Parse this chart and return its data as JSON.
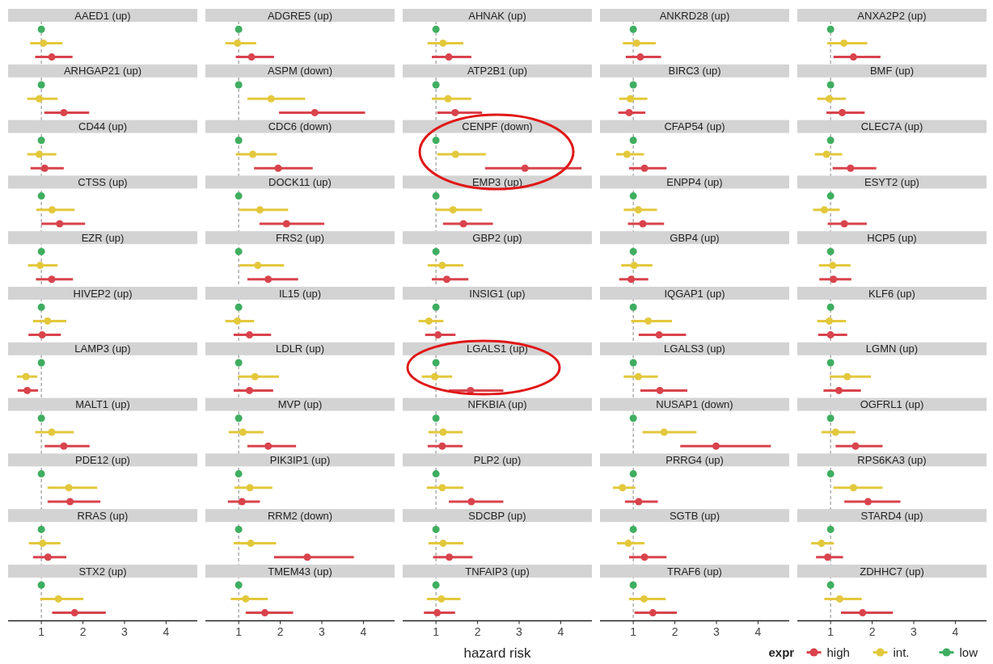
{
  "chart_data": [
    {
      "type": "scatter",
      "orientation": "horizontal",
      "categories": [
        "AAED1 (up)",
        null,
        null,
        null,
        "ARHGAP21 (up)",
        null,
        null,
        null,
        "CD44 (up)",
        null,
        null,
        null,
        "CTSS (up)",
        null,
        null,
        null,
        "EZR (up)",
        null,
        null,
        null,
        "HIVEP2 (up)",
        null,
        null,
        null,
        "LAMP3 (up)",
        null,
        null,
        null,
        "MALT1 (up)",
        null,
        null,
        null,
        "PDE12 (up)",
        null,
        null,
        null,
        "RRAS (up)",
        null,
        null,
        null,
        "STX2 (up)",
        null,
        null,
        null
      ],
      "xlim": [
        0.2,
        4.75
      ],
      "xticks": [
        1,
        2,
        3,
        4
      ],
      "marker": "circle",
      "ref_lines": [
        {
          "axis": "x",
          "value": 1,
          "line_style": "dashed",
          "color": "#9a9a9a"
        }
      ],
      "series": [
        {
          "color": "#d9434c",
          "values": [
            null,
            null,
            null,
            1.25,
            null,
            null,
            null,
            1.54,
            null,
            null,
            null,
            1.08,
            null,
            null,
            null,
            1.44,
            null,
            null,
            null,
            1.25,
            null,
            null,
            null,
            1.02,
            null,
            null,
            null,
            0.66,
            null,
            null,
            null,
            1.54,
            null,
            null,
            null,
            1.69,
            null,
            null,
            null,
            1.16,
            null,
            null,
            null,
            1.8
          ],
          "errors": [
            null,
            null,
            null,
            [
              0.85,
              1.75
            ],
            null,
            null,
            null,
            [
              1.07,
              2.15
            ],
            null,
            null,
            null,
            [
              0.74,
              1.54
            ],
            null,
            null,
            null,
            [
              1.0,
              2.05
            ],
            null,
            null,
            null,
            [
              0.87,
              1.76
            ],
            null,
            null,
            null,
            [
              0.69,
              1.47
            ],
            null,
            null,
            null,
            [
              0.43,
              0.92
            ],
            null,
            null,
            null,
            [
              1.08,
              2.16
            ],
            null,
            null,
            null,
            [
              1.15,
              2.42
            ],
            null,
            null,
            null,
            [
              0.8,
              1.6
            ],
            null,
            null,
            null,
            [
              1.26,
              2.55
            ]
          ]
        },
        {
          "color": "#e3c83c",
          "values": [
            null,
            null,
            1.05,
            null,
            null,
            null,
            0.95,
            null,
            null,
            null,
            0.95,
            null,
            null,
            null,
            1.26,
            null,
            null,
            null,
            0.97,
            null,
            null,
            null,
            1.15,
            null,
            null,
            null,
            0.63,
            null,
            null,
            null,
            1.25,
            null,
            null,
            null,
            1.66,
            null,
            null,
            null,
            1.03,
            null,
            null,
            null,
            1.41,
            null
          ],
          "errors": [
            null,
            null,
            [
              0.73,
              1.51
            ],
            null,
            null,
            null,
            [
              0.66,
              1.39
            ],
            null,
            null,
            null,
            [
              0.66,
              1.36
            ],
            null,
            null,
            null,
            [
              0.88,
              1.8
            ],
            null,
            null,
            null,
            [
              0.68,
              1.39
            ],
            null,
            null,
            null,
            [
              0.8,
              1.6
            ],
            null,
            null,
            null,
            [
              0.41,
              0.9
            ],
            null,
            null,
            null,
            [
              0.85,
              1.78
            ],
            null,
            null,
            null,
            [
              1.15,
              2.34
            ],
            null,
            null,
            null,
            [
              0.7,
              1.46
            ],
            null,
            null,
            null,
            [
              0.97,
              2.01
            ],
            null
          ]
        },
        {
          "color": "#3fae60",
          "values": [
            null,
            1,
            null,
            null,
            null,
            1,
            null,
            null,
            null,
            1,
            null,
            null,
            null,
            1,
            null,
            null,
            null,
            1,
            null,
            null,
            null,
            1,
            null,
            null,
            null,
            1,
            null,
            null,
            null,
            1,
            null,
            null,
            null,
            1,
            null,
            null,
            null,
            1,
            null,
            null,
            null,
            1,
            null,
            null
          ]
        }
      ]
    },
    {
      "type": "scatter",
      "orientation": "horizontal",
      "categories": [
        "ADGRE5 (up)",
        null,
        null,
        null,
        "ASPM (down)",
        null,
        null,
        null,
        "CDC6 (down)",
        null,
        null,
        null,
        "DOCK11 (up)",
        null,
        null,
        null,
        "FRS2 (up)",
        null,
        null,
        null,
        "IL15 (up)",
        null,
        null,
        null,
        "LDLR (up)",
        null,
        null,
        null,
        "MVP (up)",
        null,
        null,
        null,
        "PIK3IP1 (up)",
        null,
        null,
        null,
        "RRM2 (down)",
        null,
        null,
        null,
        "TMEM43 (up)",
        null,
        null,
        null
      ],
      "xlim": [
        0.2,
        4.75
      ],
      "xticks": [
        1,
        2,
        3,
        4
      ],
      "marker": "circle",
      "ref_lines": [
        {
          "axis": "x",
          "value": 1,
          "line_style": "dashed",
          "color": "#9a9a9a"
        }
      ],
      "series": [
        {
          "color": "#d9434c",
          "values": [
            null,
            null,
            null,
            1.31,
            null,
            null,
            null,
            2.83,
            null,
            null,
            null,
            1.95,
            null,
            null,
            null,
            2.15,
            null,
            null,
            null,
            1.71,
            null,
            null,
            null,
            1.26,
            null,
            null,
            null,
            1.26,
            null,
            null,
            null,
            1.71,
            null,
            null,
            null,
            1.08,
            null,
            null,
            null,
            2.65,
            null,
            null,
            null,
            1.63
          ],
          "errors": [
            null,
            null,
            null,
            [
              0.93,
              1.85
            ],
            null,
            null,
            null,
            [
              1.97,
              4.04
            ],
            null,
            null,
            null,
            [
              1.37,
              2.78
            ],
            null,
            null,
            null,
            [
              1.5,
              3.06
            ],
            null,
            null,
            null,
            [
              1.21,
              2.43
            ],
            null,
            null,
            null,
            [
              0.88,
              1.78
            ],
            null,
            null,
            null,
            [
              0.88,
              1.83
            ],
            null,
            null,
            null,
            [
              1.21,
              2.38
            ],
            null,
            null,
            null,
            [
              0.74,
              1.51
            ],
            null,
            null,
            null,
            [
              1.85,
              3.77
            ],
            null,
            null,
            null,
            [
              1.17,
              2.31
            ]
          ]
        },
        {
          "color": "#e3c83c",
          "values": [
            null,
            null,
            0.97,
            null,
            null,
            null,
            1.78,
            null,
            null,
            null,
            1.34,
            null,
            null,
            null,
            1.51,
            null,
            null,
            null,
            1.46,
            null,
            null,
            null,
            0.97,
            null,
            null,
            null,
            1.39,
            null,
            null,
            null,
            1.1,
            null,
            null,
            null,
            1.27,
            null,
            null,
            null,
            1.29,
            null,
            null,
            null,
            1.17,
            null
          ],
          "errors": [
            null,
            null,
            [
              0.68,
              1.42
            ],
            null,
            null,
            null,
            [
              1.21,
              2.6
            ],
            null,
            null,
            null,
            [
              0.93,
              1.92
            ],
            null,
            null,
            null,
            [
              1.02,
              2.19
            ],
            null,
            null,
            null,
            [
              1.02,
              2.09
            ],
            null,
            null,
            null,
            [
              0.68,
              1.37
            ],
            null,
            null,
            null,
            [
              0.98,
              1.97
            ],
            null,
            null,
            null,
            [
              0.76,
              1.6
            ],
            null,
            null,
            null,
            [
              0.9,
              1.81
            ],
            null,
            null,
            null,
            [
              0.88,
              1.9
            ],
            null,
            null,
            null,
            [
              0.81,
              1.7
            ],
            null
          ]
        },
        {
          "color": "#3fae60",
          "values": [
            null,
            1,
            null,
            null,
            null,
            1,
            null,
            null,
            null,
            1,
            null,
            null,
            null,
            1,
            null,
            null,
            null,
            1,
            null,
            null,
            null,
            1,
            null,
            null,
            null,
            1,
            null,
            null,
            null,
            1,
            null,
            null,
            null,
            1,
            null,
            null,
            null,
            1,
            null,
            null,
            null,
            1,
            null,
            null
          ]
        }
      ]
    },
    {
      "type": "scatter",
      "orientation": "horizontal",
      "xlabel": "hazard risk",
      "categories": [
        "AHNAK (up)",
        null,
        null,
        null,
        "ATP2B1 (up)",
        null,
        null,
        null,
        "CENPF (down)",
        null,
        null,
        null,
        "EMP3 (up)",
        null,
        null,
        null,
        "GBP2 (up)",
        null,
        null,
        null,
        "INSIG1 (up)",
        null,
        null,
        null,
        "LGALS1 (up)",
        null,
        null,
        null,
        "NFKBIA (up)",
        null,
        null,
        null,
        "PLP2 (up)",
        null,
        null,
        null,
        "SDCBP (up)",
        null,
        null,
        null,
        "TNFAIP3 (up)",
        null,
        null,
        null
      ],
      "xlim": [
        0.2,
        4.75
      ],
      "xticks": [
        1,
        2,
        3,
        4
      ],
      "marker": "circle",
      "ref_lines": [
        {
          "axis": "x",
          "value": 1,
          "line_style": "dashed",
          "color": "#9a9a9a"
        }
      ],
      "series": [
        {
          "color": "#d9434c",
          "values": [
            null,
            null,
            null,
            1.31,
            null,
            null,
            null,
            1.46,
            null,
            null,
            null,
            3.14,
            null,
            null,
            null,
            1.66,
            null,
            null,
            null,
            1.26,
            null,
            null,
            null,
            1.05,
            null,
            null,
            null,
            1.83,
            null,
            null,
            null,
            1.15,
            null,
            null,
            null,
            1.85,
            null,
            null,
            null,
            1.32,
            null,
            null,
            null,
            1.03
          ],
          "errors": [
            null,
            null,
            null,
            [
              0.9,
              1.85
            ],
            null,
            null,
            null,
            [
              1.03,
              2.11
            ],
            null,
            null,
            null,
            [
              2.18,
              4.5
            ],
            null,
            null,
            null,
            [
              1.17,
              2.37
            ],
            null,
            null,
            null,
            [
              0.9,
              1.78
            ],
            null,
            null,
            null,
            [
              0.74,
              1.47
            ],
            null,
            null,
            null,
            [
              1.31,
              2.62
            ],
            null,
            null,
            null,
            [
              0.8,
              1.64
            ],
            null,
            null,
            null,
            [
              1.31,
              2.62
            ],
            null,
            null,
            null,
            [
              0.93,
              1.88
            ],
            null,
            null,
            null,
            [
              0.71,
              1.46
            ]
          ]
        },
        {
          "color": "#e3c83c",
          "values": [
            null,
            null,
            1.17,
            null,
            null,
            null,
            1.29,
            null,
            null,
            null,
            1.47,
            null,
            null,
            null,
            1.41,
            null,
            null,
            null,
            1.15,
            null,
            null,
            null,
            0.83,
            null,
            null,
            null,
            0.97,
            null,
            null,
            null,
            1.17,
            null,
            null,
            null,
            1.15,
            null,
            null,
            null,
            1.17,
            null,
            null,
            null,
            1.13,
            null
          ],
          "errors": [
            null,
            null,
            [
              0.8,
              1.66
            ],
            null,
            null,
            null,
            [
              0.9,
              1.85
            ],
            null,
            null,
            null,
            [
              1.03,
              2.2
            ],
            null,
            null,
            null,
            [
              1.0,
              2.11
            ],
            null,
            null,
            null,
            [
              0.8,
              1.66
            ],
            null,
            null,
            null,
            [
              0.58,
              1.18
            ],
            null,
            null,
            null,
            [
              0.66,
              1.39
            ],
            null,
            null,
            null,
            [
              0.82,
              1.64
            ],
            null,
            null,
            null,
            [
              0.78,
              1.66
            ],
            null,
            null,
            null,
            [
              0.82,
              1.66
            ],
            null,
            null,
            null,
            [
              0.78,
              1.59
            ],
            null
          ]
        },
        {
          "color": "#3fae60",
          "values": [
            null,
            1,
            null,
            null,
            null,
            1,
            null,
            null,
            null,
            1,
            null,
            null,
            null,
            1,
            null,
            null,
            null,
            1,
            null,
            null,
            null,
            1,
            null,
            null,
            null,
            1,
            null,
            null,
            null,
            1,
            null,
            null,
            null,
            1,
            null,
            null,
            null,
            1,
            null,
            null,
            null,
            1,
            null,
            null
          ]
        }
      ]
    },
    {
      "type": "scatter",
      "orientation": "horizontal",
      "categories": [
        "ANKRD28 (up)",
        null,
        null,
        null,
        "BIRC3 (up)",
        null,
        null,
        null,
        "CFAP54 (up)",
        null,
        null,
        null,
        "ENPP4 (up)",
        null,
        null,
        null,
        "GBP4 (up)",
        null,
        null,
        null,
        "IQGAP1 (up)",
        null,
        null,
        null,
        "LGALS3 (up)",
        null,
        null,
        null,
        "NUSAP1 (down)",
        null,
        null,
        null,
        "PRRG4 (up)",
        null,
        null,
        null,
        "SGTB (up)",
        null,
        null,
        null,
        "TRAF6 (up)",
        null,
        null,
        null
      ],
      "xlim": [
        0.2,
        4.75
      ],
      "xticks": [
        1,
        2,
        3,
        4
      ],
      "marker": "circle",
      "ref_lines": [
        {
          "axis": "x",
          "value": 1,
          "line_style": "dashed",
          "color": "#9a9a9a"
        }
      ],
      "series": [
        {
          "color": "#d9434c",
          "values": [
            null,
            null,
            null,
            1.17,
            null,
            null,
            null,
            0.9,
            null,
            null,
            null,
            1.27,
            null,
            null,
            null,
            1.23,
            null,
            null,
            null,
            0.95,
            null,
            null,
            null,
            1.62,
            null,
            null,
            null,
            1.64,
            null,
            null,
            null,
            2.99,
            null,
            null,
            null,
            1.13,
            null,
            null,
            null,
            1.27,
            null,
            null,
            null,
            1.47
          ],
          "errors": [
            null,
            null,
            null,
            [
              0.82,
              1.67
            ],
            null,
            null,
            null,
            [
              0.64,
              1.29
            ],
            null,
            null,
            null,
            [
              0.9,
              1.8
            ],
            null,
            null,
            null,
            [
              0.87,
              1.74
            ],
            null,
            null,
            null,
            [
              0.66,
              1.36
            ],
            null,
            null,
            null,
            [
              1.13,
              2.27
            ],
            null,
            null,
            null,
            [
              1.17,
              2.3
            ],
            null,
            null,
            null,
            [
              2.13,
              4.31
            ],
            null,
            null,
            null,
            [
              0.8,
              1.59
            ],
            null,
            null,
            null,
            [
              0.9,
              1.8
            ],
            null,
            null,
            null,
            [
              1.03,
              2.05
            ]
          ]
        },
        {
          "color": "#e3c83c",
          "values": [
            null,
            null,
            1.08,
            null,
            null,
            null,
            0.93,
            null,
            null,
            null,
            0.85,
            null,
            null,
            null,
            1.12,
            null,
            null,
            null,
            1.02,
            null,
            null,
            null,
            1.36,
            null,
            null,
            null,
            1.12,
            null,
            null,
            null,
            1.74,
            null,
            null,
            null,
            0.74,
            null,
            null,
            null,
            0.88,
            null,
            null,
            null,
            1.26,
            null
          ],
          "errors": [
            null,
            null,
            [
              0.75,
              1.54
            ],
            null,
            null,
            null,
            [
              0.66,
              1.34
            ],
            null,
            null,
            null,
            [
              0.59,
              1.26
            ],
            null,
            null,
            null,
            [
              0.77,
              1.57
            ],
            null,
            null,
            null,
            [
              0.71,
              1.46
            ],
            null,
            null,
            null,
            [
              0.95,
              1.93
            ],
            null,
            null,
            null,
            [
              0.77,
              1.59
            ],
            null,
            null,
            null,
            [
              1.22,
              2.52
            ],
            null,
            null,
            null,
            [
              0.51,
              1.05
            ],
            null,
            null,
            null,
            [
              0.61,
              1.27
            ],
            null,
            null,
            null,
            [
              0.9,
              1.78
            ],
            null
          ]
        },
        {
          "color": "#3fae60",
          "values": [
            null,
            1,
            null,
            null,
            null,
            1,
            null,
            null,
            null,
            1,
            null,
            null,
            null,
            1,
            null,
            null,
            null,
            1,
            null,
            null,
            null,
            1,
            null,
            null,
            null,
            1,
            null,
            null,
            null,
            1,
            null,
            null,
            null,
            1,
            null,
            null,
            null,
            1,
            null,
            null,
            null,
            1,
            null,
            null
          ]
        }
      ]
    },
    {
      "type": "scatter",
      "orientation": "horizontal",
      "legend": "bottom",
      "legend_title": "expr",
      "categories": [
        "ANXA2P2 (up)",
        null,
        null,
        null,
        "BMF (up)",
        null,
        null,
        null,
        "CLEC7A (up)",
        null,
        null,
        null,
        "ESYT2 (up)",
        null,
        null,
        null,
        "HCP5 (up)",
        null,
        null,
        null,
        "KLF6 (up)",
        null,
        null,
        null,
        "LGMN (up)",
        null,
        null,
        null,
        "OGFRL1 (up)",
        null,
        null,
        null,
        "RPS6KA3 (up)",
        null,
        null,
        null,
        "STARD4 (up)",
        null,
        null,
        null,
        "ZDHHC7 (up)",
        null,
        null,
        null
      ],
      "xlim": [
        0.2,
        4.75
      ],
      "xticks": [
        1,
        2,
        3,
        4
      ],
      "marker": "circle",
      "ref_lines": [
        {
          "axis": "x",
          "value": 1,
          "line_style": "dashed",
          "color": "#9a9a9a"
        }
      ],
      "series": [
        {
          "name": "high",
          "color": "#d9434c",
          "values": [
            null,
            null,
            null,
            1.55,
            null,
            null,
            null,
            1.28,
            null,
            null,
            null,
            1.48,
            null,
            null,
            null,
            1.33,
            null,
            null,
            null,
            1.07,
            null,
            null,
            null,
            1.0,
            null,
            null,
            null,
            1.2,
            null,
            null,
            null,
            1.6,
            null,
            null,
            null,
            1.9,
            null,
            null,
            null,
            0.93,
            null,
            null,
            null,
            1.77
          ],
          "errors": [
            null,
            null,
            null,
            [
              1.07,
              2.2
            ],
            null,
            null,
            null,
            [
              0.9,
              1.82
            ],
            null,
            null,
            null,
            [
              1.05,
              2.1
            ],
            null,
            null,
            null,
            [
              0.93,
              1.87
            ],
            null,
            null,
            null,
            [
              0.73,
              1.5
            ],
            null,
            null,
            null,
            [
              0.7,
              1.4
            ],
            null,
            null,
            null,
            [
              0.83,
              1.73
            ],
            null,
            null,
            null,
            [
              1.12,
              2.25
            ],
            null,
            null,
            null,
            [
              1.33,
              2.68
            ],
            null,
            null,
            null,
            [
              0.65,
              1.3
            ],
            null,
            null,
            null,
            [
              1.25,
              2.5
            ]
          ]
        },
        {
          "name": "int.",
          "color": "#e3c83c",
          "values": [
            null,
            null,
            1.32,
            null,
            null,
            null,
            0.97,
            null,
            null,
            null,
            0.9,
            null,
            null,
            null,
            0.85,
            null,
            null,
            null,
            1.05,
            null,
            null,
            null,
            0.97,
            null,
            null,
            null,
            1.4,
            null,
            null,
            null,
            1.12,
            null,
            null,
            null,
            1.55,
            null,
            null,
            null,
            0.78,
            null,
            null,
            null,
            1.22,
            null
          ],
          "errors": [
            null,
            null,
            [
              0.92,
              1.88
            ],
            null,
            null,
            null,
            [
              0.68,
              1.37
            ],
            null,
            null,
            null,
            [
              0.62,
              1.28
            ],
            null,
            null,
            null,
            [
              0.58,
              1.22
            ],
            null,
            null,
            null,
            [
              0.72,
              1.48
            ],
            null,
            null,
            null,
            [
              0.68,
              1.37
            ],
            null,
            null,
            null,
            [
              0.98,
              1.97
            ],
            null,
            null,
            null,
            [
              0.78,
              1.6
            ],
            null,
            null,
            null,
            [
              1.07,
              2.25
            ],
            null,
            null,
            null,
            [
              0.53,
              1.08
            ],
            null,
            null,
            null,
            [
              0.85,
              1.75
            ],
            null
          ]
        },
        {
          "name": "low",
          "color": "#3fae60",
          "values": [
            null,
            1,
            null,
            null,
            null,
            1,
            null,
            null,
            null,
            1,
            null,
            null,
            null,
            1,
            null,
            null,
            null,
            1,
            null,
            null,
            null,
            1,
            null,
            null,
            null,
            1,
            null,
            null,
            null,
            1,
            null,
            null,
            null,
            1,
            null,
            null,
            null,
            1,
            null,
            null,
            null,
            1,
            null,
            null
          ]
        }
      ]
    }
  ]
}
